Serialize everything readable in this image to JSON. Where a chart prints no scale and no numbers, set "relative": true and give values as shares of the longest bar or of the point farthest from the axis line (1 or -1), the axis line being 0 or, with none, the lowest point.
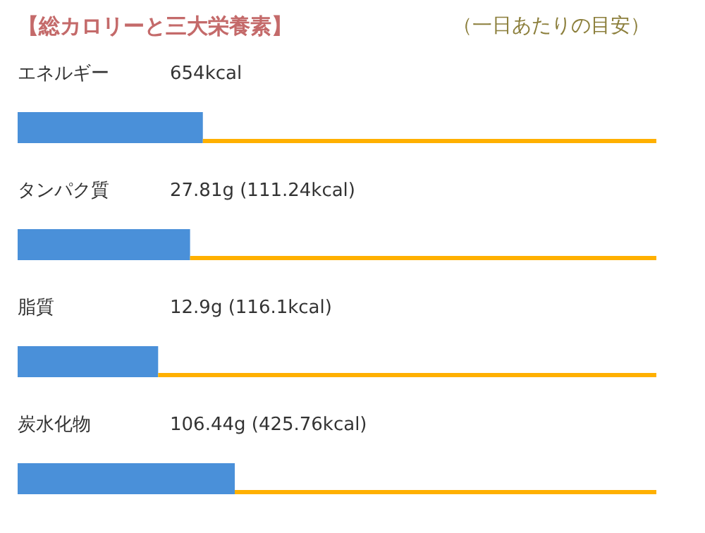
{
  "chart_data": {
    "type": "bar",
    "orientation": "horizontal",
    "stacked": true,
    "relative": true,
    "title": "【総カロリーと三大栄養素】",
    "subtitle": "（一日あたりの目安）",
    "categories": [
      "エネルギー",
      "タンパク質",
      "脂質",
      "炭水化物"
    ],
    "annotations": [
      "654kcal",
      "27.81g (111.24kcal)",
      "12.9g (116.1kcal)",
      "106.44g (425.76kcal)"
    ],
    "series": [
      {
        "color": "#4a90d9",
        "values": [
          0.29,
          0.27,
          0.22,
          0.34
        ]
      },
      {
        "color": "#ffb000",
        "values": [
          0.71,
          0.73,
          0.78,
          0.66
        ]
      }
    ]
  }
}
